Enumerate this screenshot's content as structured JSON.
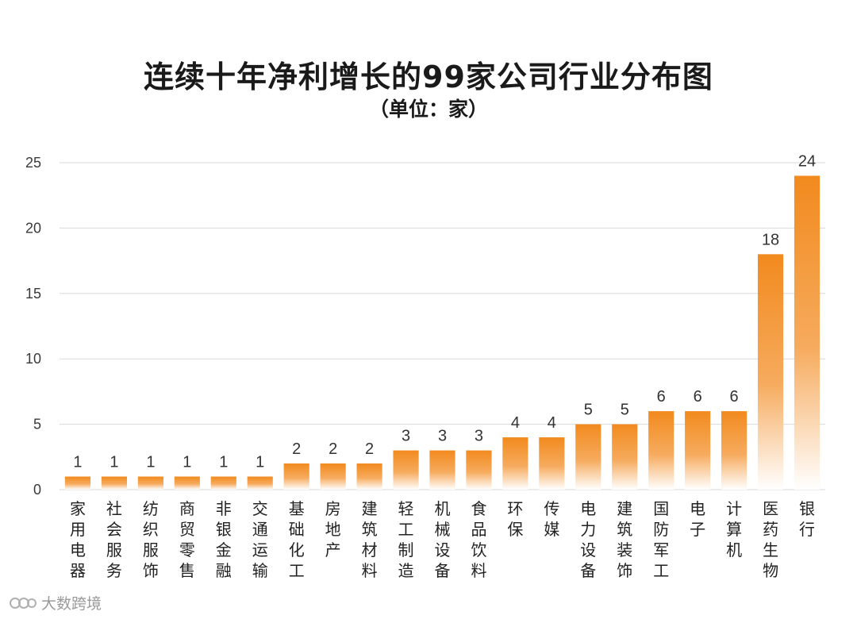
{
  "chart_data": {
    "type": "bar",
    "title": "连续十年净利增长的99家公司行业分布图",
    "subtitle": "（单位：家）",
    "categories": [
      "家用电器",
      "社会服务",
      "纺织服饰",
      "商贸零售",
      "非银金融",
      "交通运输",
      "基础化工",
      "房地产",
      "建筑材料",
      "轻工制造",
      "机械设备",
      "食品饮料",
      "环保",
      "传媒",
      "电力设备",
      "建筑装饰",
      "国防军工",
      "电子",
      "计算机",
      "医药生物",
      "银行"
    ],
    "values": [
      1,
      1,
      1,
      1,
      1,
      1,
      2,
      2,
      2,
      3,
      3,
      3,
      4,
      4,
      5,
      5,
      6,
      6,
      6,
      18,
      24
    ],
    "ylim": [
      0,
      25
    ],
    "yticks": [
      0,
      5,
      10,
      15,
      20,
      25
    ],
    "grid": true,
    "bar_color": "#f28a1e"
  },
  "watermark": {
    "text": "大数跨境",
    "icon": "logo-icon"
  }
}
